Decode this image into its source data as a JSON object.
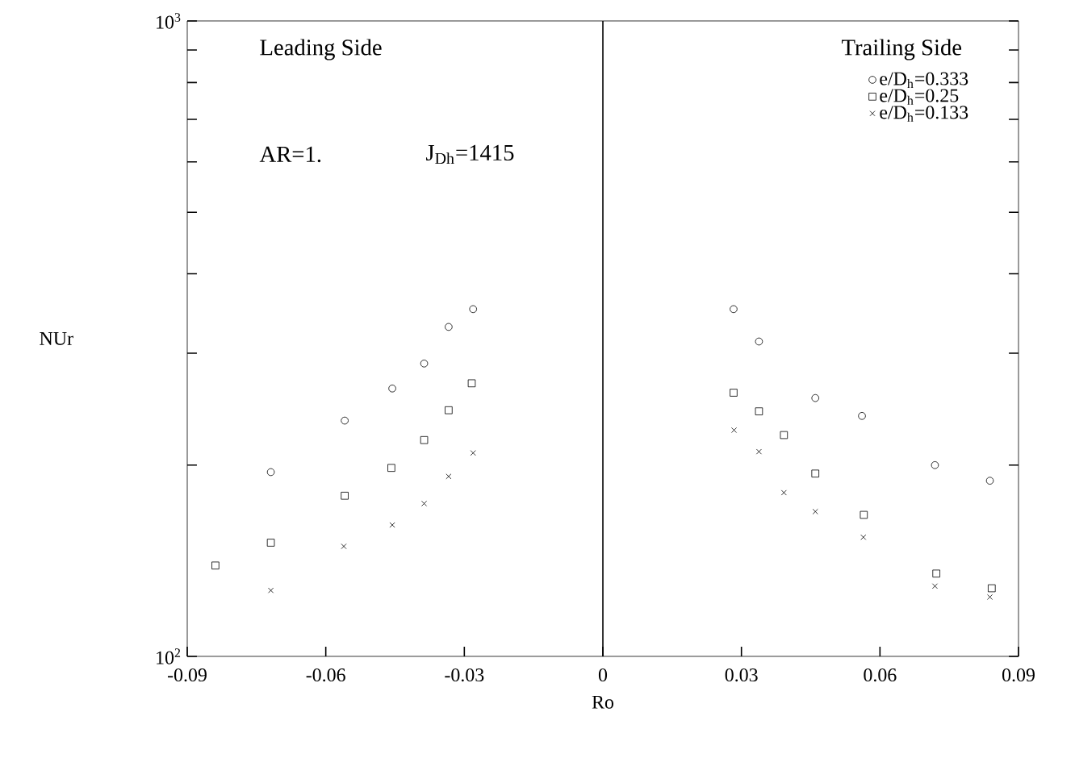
{
  "chart_data": {
    "type": "scatter",
    "xlabel": "Ro",
    "ylabel": "NUr",
    "annotations": [
      "Leading Side",
      "Trailing Side",
      "AR=1.",
      "J$_{Dh}$=1415"
    ],
    "series": [
      {
        "name": "e/D$_{h}$=0.333",
        "color": "#000000",
        "marker": "circle",
        "x": [
          -0.0719,
          -0.0559,
          -0.0456,
          -0.0387,
          -0.0334,
          -0.0281,
          0.0283,
          0.0338,
          0.046,
          0.0561,
          0.0719,
          0.0838
        ],
        "values": [
          195,
          235,
          264,
          289,
          330,
          352,
          352,
          313,
          255,
          239,
          200,
          189
        ]
      },
      {
        "name": "e/D$_{h}$=0.25",
        "color": "#000000",
        "marker": "square",
        "x": [
          -0.0839,
          -0.0719,
          -0.0559,
          -0.0458,
          -0.0387,
          -0.0334,
          -0.0284,
          0.0283,
          0.0338,
          0.0392,
          0.046,
          0.0565,
          0.0722,
          0.0842
        ],
        "values": [
          139,
          151,
          179,
          198,
          219,
          244,
          269,
          260,
          243,
          223,
          194,
          167,
          135,
          128
        ]
      },
      {
        "name": "e/D$_{h}$=0.133",
        "color": "#000000",
        "marker": "cross",
        "x": [
          -0.0719,
          -0.0561,
          -0.0456,
          -0.0387,
          -0.0334,
          -0.0281,
          0.0284,
          0.0338,
          0.0392,
          0.046,
          0.0564,
          0.0719,
          0.0838
        ],
        "values": [
          127,
          149,
          161,
          174,
          192,
          209,
          227,
          210,
          181,
          169,
          154,
          129,
          124
        ]
      }
    ],
    "xlim": [
      -0.09,
      0.09
    ],
    "xticks": [
      -0.09,
      -0.06,
      -0.03,
      0,
      0.03,
      0.06,
      0.09
    ],
    "ylim": [
      100,
      1000
    ],
    "log": "y",
    "yticks": [
      {
        "value": 100,
        "label": "10$^{2}$"
      },
      {
        "value": 200,
        "label": null
      },
      {
        "value": 300,
        "label": null
      },
      {
        "value": 400,
        "label": null
      },
      {
        "value": 500,
        "label": null
      },
      {
        "value": 600,
        "label": null
      },
      {
        "value": 700,
        "label": null
      },
      {
        "value": 800,
        "label": null
      },
      {
        "value": 900,
        "label": null
      },
      {
        "value": 1000,
        "label": "10$^{3}$"
      }
    ],
    "ref_lines": [
      {
        "axis": "x",
        "value": 0
      }
    ],
    "legend": "top right",
    "grid": false
  }
}
